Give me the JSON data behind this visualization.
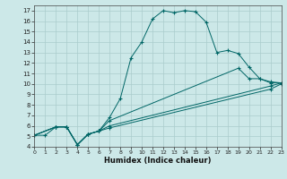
{
  "xlabel": "Humidex (Indice chaleur)",
  "bg_color": "#cce8e8",
  "line_color": "#006666",
  "xlim": [
    0,
    23
  ],
  "ylim": [
    4,
    17.5
  ],
  "yticks": [
    4,
    5,
    6,
    7,
    8,
    9,
    10,
    11,
    12,
    13,
    14,
    15,
    16,
    17
  ],
  "xticks": [
    0,
    1,
    2,
    3,
    4,
    5,
    6,
    7,
    8,
    9,
    10,
    11,
    12,
    13,
    14,
    15,
    16,
    17,
    18,
    19,
    20,
    21,
    22,
    23
  ],
  "lines": [
    {
      "x": [
        0,
        1,
        2,
        3,
        4,
        5,
        6,
        7,
        8,
        9,
        10,
        11,
        12,
        13,
        14,
        15,
        16,
        17,
        18,
        19,
        20,
        21,
        22,
        23
      ],
      "y": [
        5.1,
        5.1,
        5.9,
        5.9,
        4.2,
        5.2,
        5.5,
        6.8,
        8.6,
        12.5,
        14.0,
        16.2,
        17.0,
        16.8,
        17.0,
        16.9,
        15.9,
        13.0,
        13.2,
        12.9,
        11.6,
        10.5,
        10.1,
        10.1
      ]
    },
    {
      "x": [
        0,
        2,
        3,
        4,
        5,
        6,
        7,
        19,
        20,
        21,
        22,
        23
      ],
      "y": [
        5.1,
        5.9,
        5.9,
        4.2,
        5.2,
        5.5,
        6.5,
        11.5,
        10.5,
        10.5,
        10.2,
        10.1
      ]
    },
    {
      "x": [
        0,
        2,
        3,
        4,
        5,
        6,
        7,
        22,
        23
      ],
      "y": [
        5.1,
        5.9,
        5.9,
        4.2,
        5.2,
        5.5,
        6.0,
        9.8,
        10.1
      ]
    },
    {
      "x": [
        0,
        2,
        3,
        4,
        5,
        6,
        7,
        22,
        23
      ],
      "y": [
        5.1,
        5.9,
        5.9,
        4.2,
        5.2,
        5.5,
        5.8,
        9.5,
        10.0
      ]
    }
  ]
}
